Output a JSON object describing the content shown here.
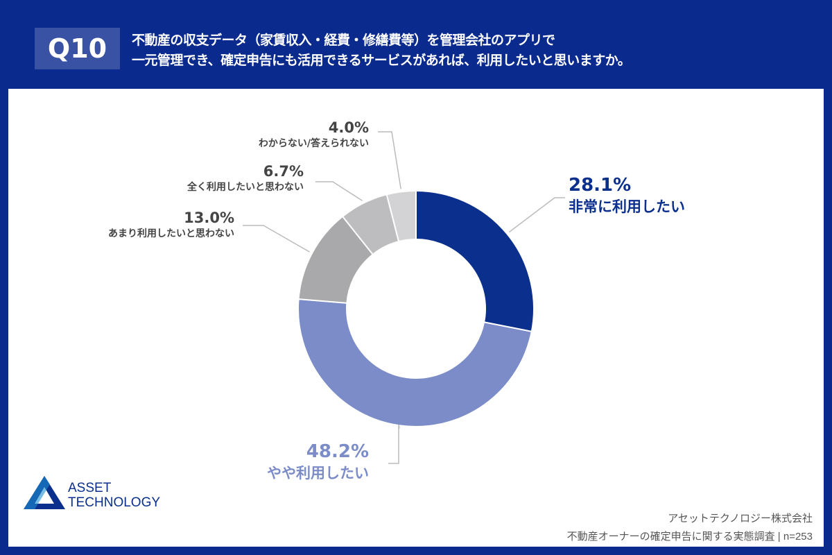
{
  "header": {
    "q_label": "Q10",
    "question_line1": "不動産の収支データ（家賃収入・経費・修繕費等）を管理会社のアプリで",
    "question_line2": "一元管理でき、確定申告にも活用できるサービスがあれば、利用したいと思いますか。"
  },
  "chart_data": {
    "type": "pie",
    "donut": true,
    "categories": [
      "非常に利用したい",
      "やや利用したい",
      "あまり利用したいと思わない",
      "全く利用したいと思わない",
      "わからない/答えられない"
    ],
    "values": [
      28.1,
      48.2,
      13.0,
      6.7,
      4.0
    ],
    "labels": [
      "28.1%",
      "48.2%",
      "13.0%",
      "6.7%",
      "4.0%"
    ],
    "colors": [
      "#0b2f8c",
      "#7b8cc8",
      "#a9a9ab",
      "#bdbdbf",
      "#d3d3d5"
    ]
  },
  "logo": {
    "line1": "ASSET",
    "line2": "TECHNOLOGY"
  },
  "source": {
    "company": "アセットテクノロジー株式会社",
    "survey": "不動産オーナーの確定申告に関する実態調査 | n=253"
  }
}
